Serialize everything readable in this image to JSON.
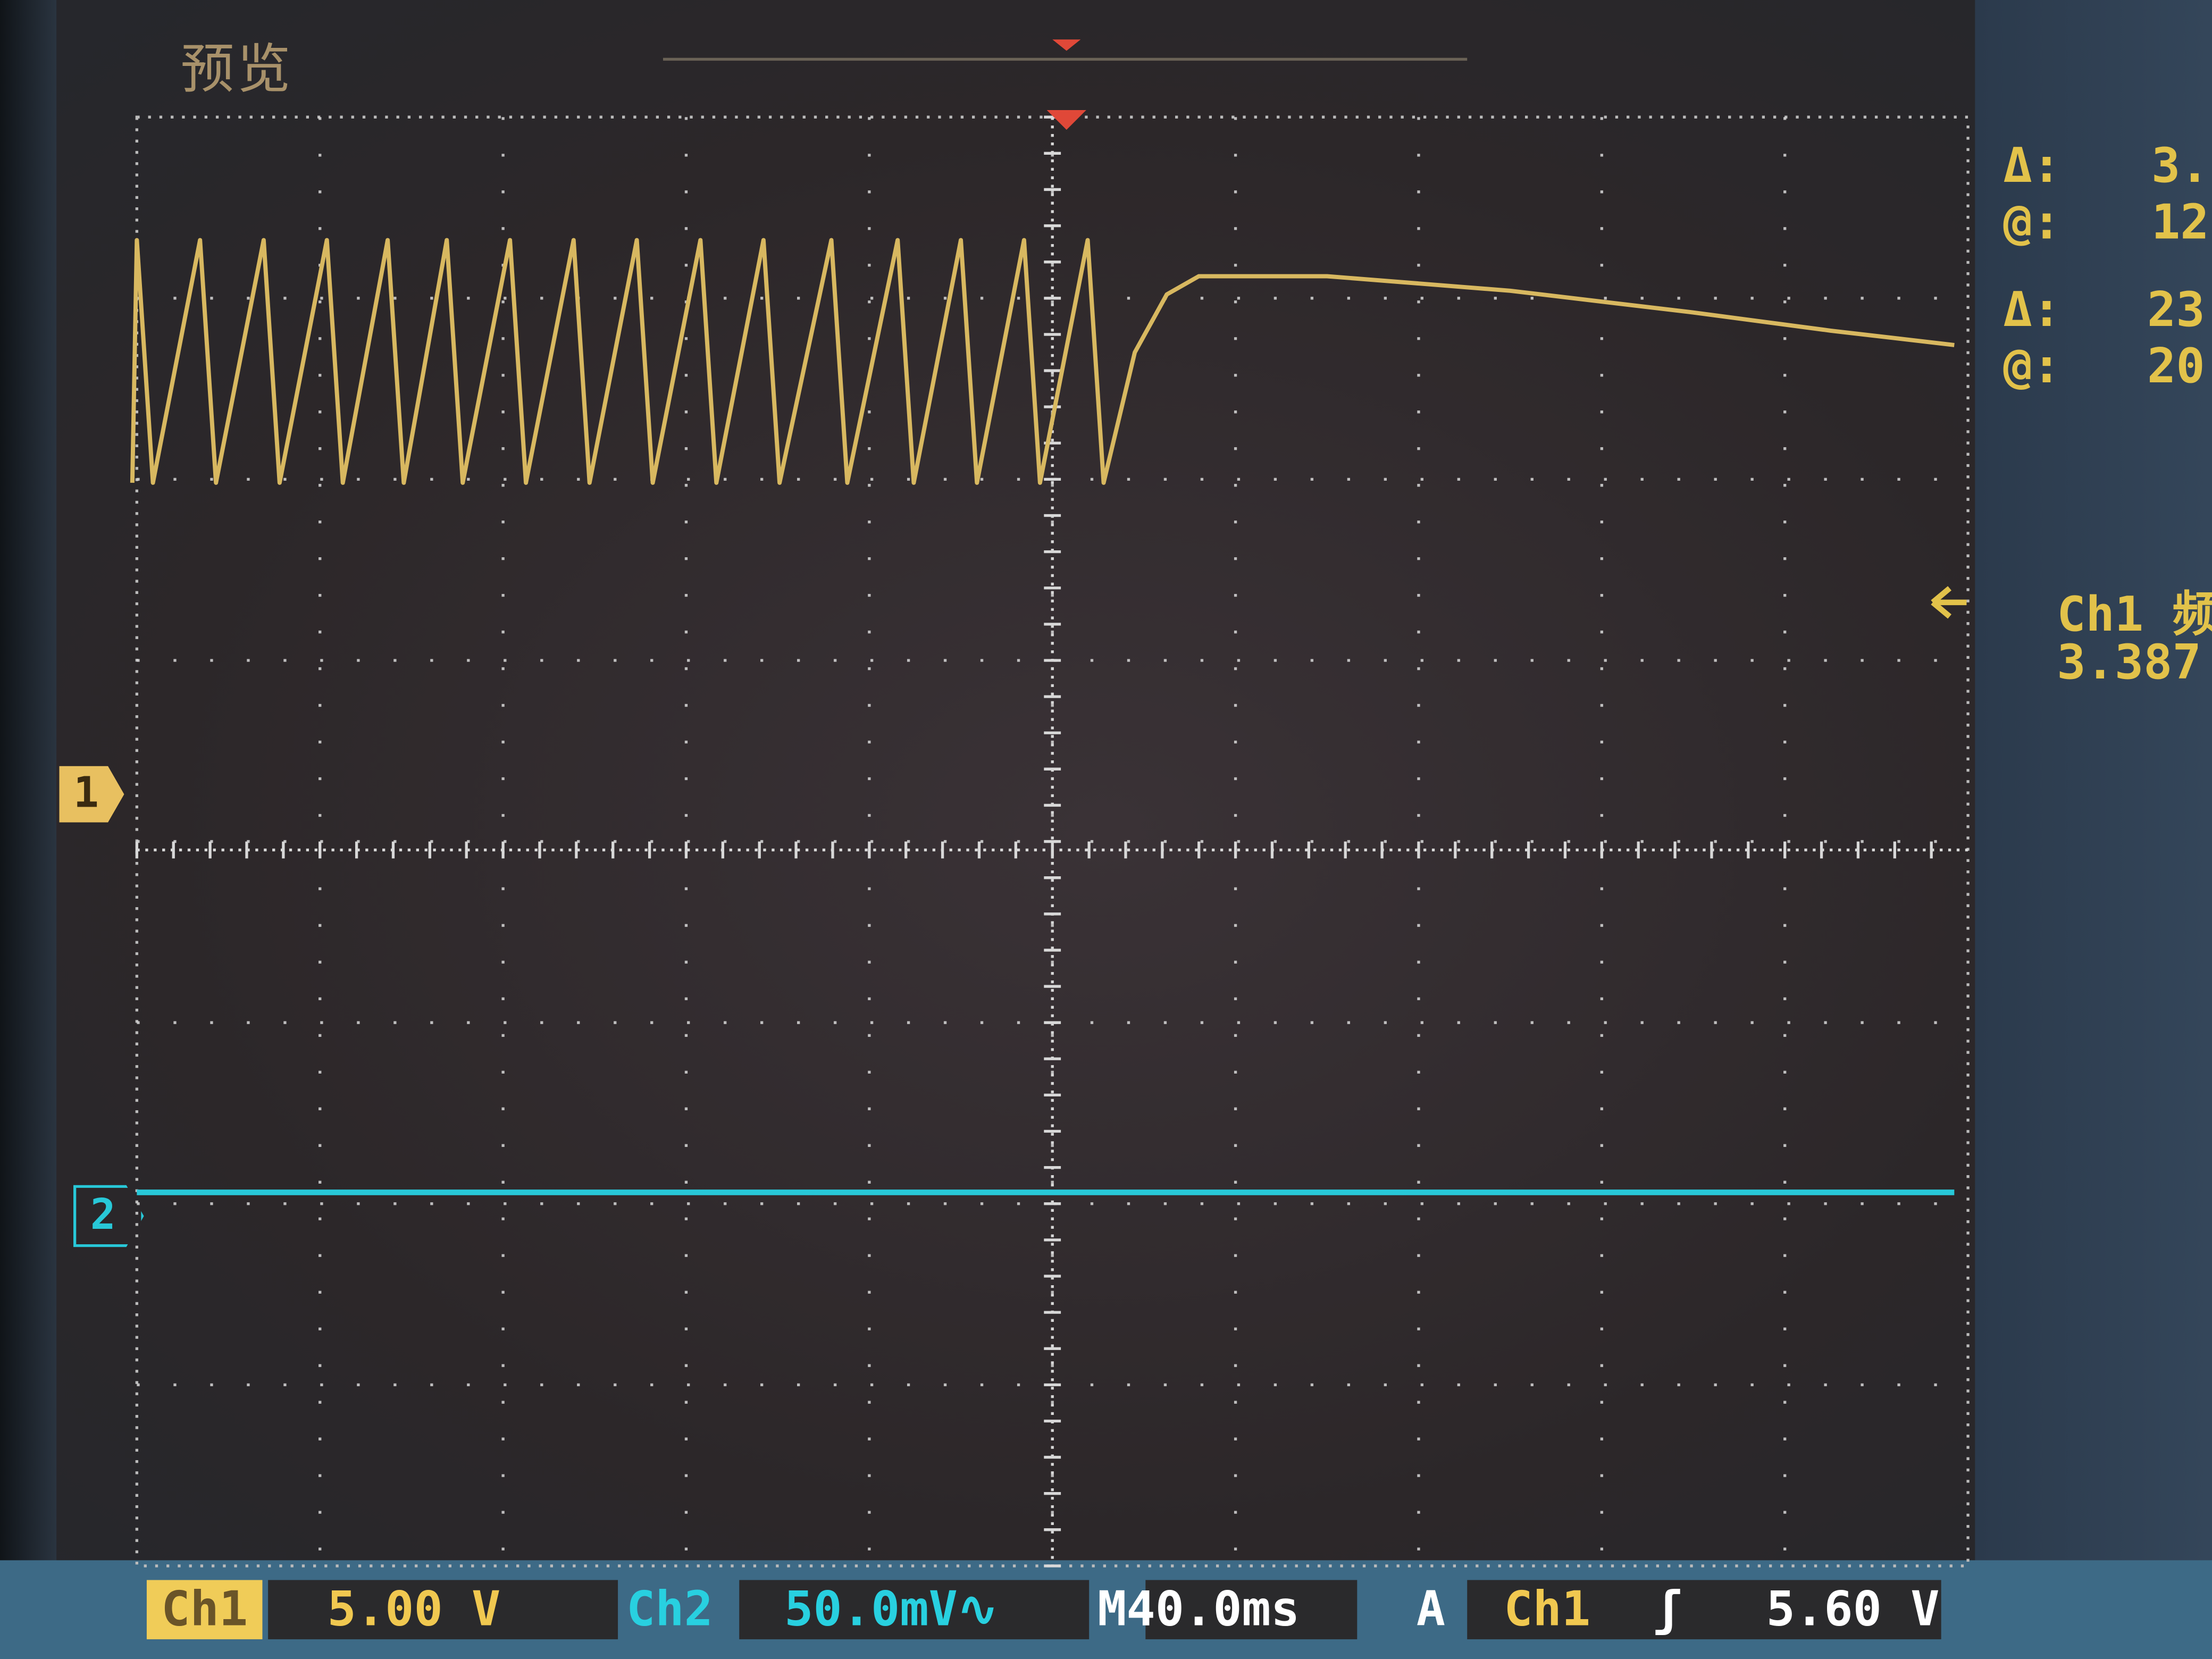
{
  "screen": {
    "title": "预览",
    "mode_text_color": "#a8916a"
  },
  "colors": {
    "ch1": "#d8b860",
    "ch2": "#28c8d8",
    "readout": "#e2c24a",
    "grid": "#d8d8d8"
  },
  "cursor_readout": {
    "rows": [
      {
        "label": "Δ:",
        "value": "3."
      },
      {
        "label": "@:",
        "value": "12"
      },
      {
        "label": "Δ:",
        "value": "23"
      },
      {
        "label": "@:",
        "value": "20"
      }
    ]
  },
  "measurement": {
    "label": "Ch1 频",
    "value": "3.387"
  },
  "markers": {
    "ch1": "1",
    "ch2": "2",
    "trigger_level_icon": "arrow-left-icon",
    "trigger_position_icon": "triangle-down-icon"
  },
  "status_bar": {
    "ch1_label": "Ch1",
    "ch1_scale": "5.00 V",
    "ch2_label": "Ch2",
    "ch2_scale": "50.0mV∿",
    "timebase": "M40.0ms",
    "trigger_mode": "A",
    "trigger_source": "Ch1",
    "trigger_slope_icon": "rising-edge-icon",
    "trigger_slope": "ʃ",
    "trigger_level": "5.60 V"
  },
  "chart_data": {
    "type": "line",
    "title": "",
    "xlabel": "",
    "ylabel": "",
    "x_units": "ms",
    "x_range": [
      -200,
      200
    ],
    "x_divisions": 10,
    "y_divisions": 8,
    "grid": true,
    "series": [
      {
        "name": "Ch1",
        "units": "V",
        "volts_per_div": 5.0,
        "points": [
          [
            -201,
            8.6
          ],
          [
            -200,
            15.3
          ],
          [
            -196.5,
            8.6
          ],
          [
            -186.2,
            15.3
          ],
          [
            -182.7,
            8.6
          ],
          [
            -172.3,
            15.3
          ],
          [
            -168.8,
            8.6
          ],
          [
            -158.5,
            15.3
          ],
          [
            -155,
            8.6
          ],
          [
            -145.2,
            15.3
          ],
          [
            -141.7,
            8.6
          ],
          [
            -132.3,
            15.3
          ],
          [
            -128.8,
            8.6
          ],
          [
            -118.5,
            15.3
          ],
          [
            -115,
            8.6
          ],
          [
            -104.6,
            15.3
          ],
          [
            -101.1,
            8.6
          ],
          [
            -90.8,
            15.3
          ],
          [
            -87.3,
            8.6
          ],
          [
            -76.9,
            15.3
          ],
          [
            -73.4,
            8.6
          ],
          [
            -63.1,
            15.3
          ],
          [
            -59.6,
            8.6
          ],
          [
            -48.3,
            15.3
          ],
          [
            -44.8,
            8.6
          ],
          [
            -33.8,
            15.3
          ],
          [
            -30.3,
            8.6
          ],
          [
            -20,
            15.3
          ],
          [
            -16.5,
            8.6
          ],
          [
            -6.2,
            15.3
          ],
          [
            -2.7,
            8.6
          ],
          [
            7.7,
            15.3
          ],
          [
            11.2,
            8.6
          ],
          [
            18,
            12.2
          ],
          [
            25,
            13.8
          ],
          [
            32,
            14.3
          ],
          [
            60,
            14.3
          ],
          [
            100,
            13.9
          ],
          [
            140,
            13.3
          ],
          [
            170,
            12.8
          ],
          [
            197,
            12.4
          ]
        ]
      },
      {
        "name": "Ch2",
        "units": "mV",
        "volts_per_div": 0.05,
        "points": [
          [
            -200,
            5
          ],
          [
            197,
            5
          ]
        ]
      }
    ]
  }
}
